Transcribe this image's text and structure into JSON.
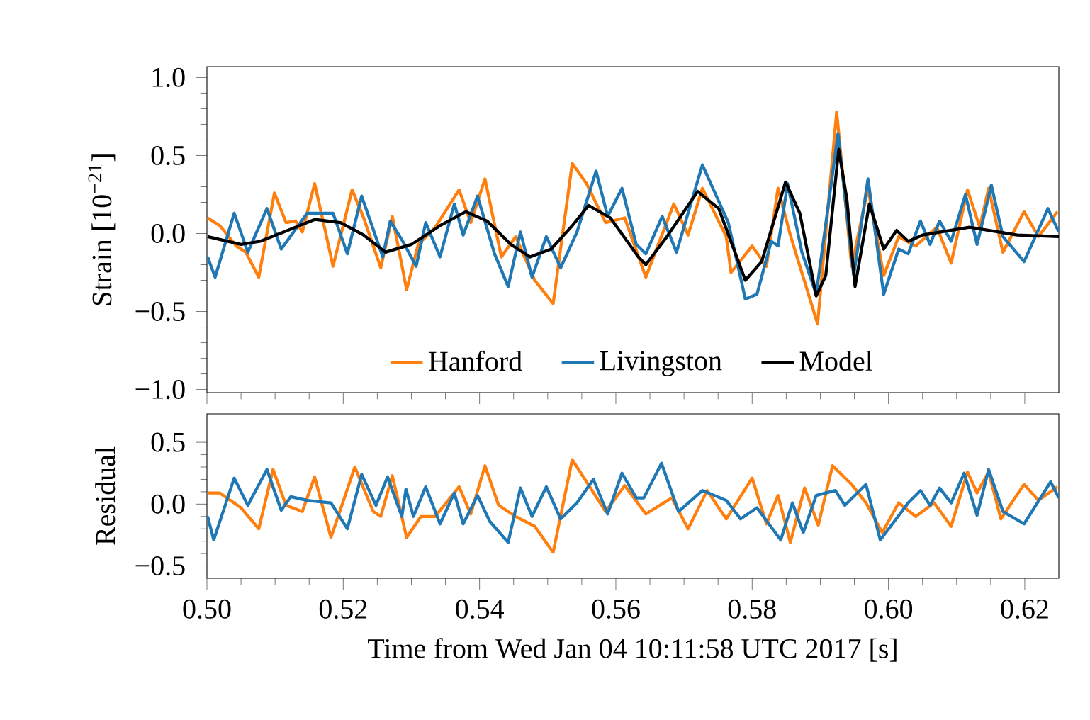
{
  "chart_data": [
    {
      "type": "line",
      "ylabel": "Strain [10$^{−21}$]",
      "xlim": [
        0.5,
        0.625
      ],
      "ylim": [
        -1.02,
        1.07
      ],
      "xticks": [
        {
          "value": 0.5,
          "label": null
        },
        {
          "value": 0.52,
          "label": null
        },
        {
          "value": 0.54,
          "label": null
        },
        {
          "value": 0.56,
          "label": null
        },
        {
          "value": 0.58,
          "label": null
        },
        {
          "value": 0.6,
          "label": null
        },
        {
          "value": 0.62,
          "label": null
        }
      ],
      "yticks": [
        {
          "value": -1.0,
          "label": "−1.0"
        },
        {
          "value": -0.5,
          "label": "−0.5"
        },
        {
          "value": 0.0,
          "label": "0.0"
        },
        {
          "value": 0.5,
          "label": "0.5"
        },
        {
          "value": 1.0,
          "label": "1.0"
        }
      ],
      "tick_labels": "y",
      "legend": "bottom",
      "series": [
        {
          "name": "Hanford",
          "color": "#ff7f0e",
          "x": [
            0.5001,
            0.5019,
            0.5043,
            0.5057,
            0.5076,
            0.5099,
            0.5116,
            0.513,
            0.514,
            0.5158,
            0.5175,
            0.5185,
            0.5213,
            0.523,
            0.5255,
            0.5272,
            0.5293,
            0.531,
            0.5335,
            0.537,
            0.5387,
            0.5408,
            0.5432,
            0.5453,
            0.5481,
            0.5508,
            0.5536,
            0.5557,
            0.5585,
            0.5613,
            0.5644,
            0.5685,
            0.5706,
            0.5727,
            0.5762,
            0.5769,
            0.58,
            0.5821,
            0.5838,
            0.5856,
            0.5896,
            0.5924,
            0.5946,
            0.597,
            0.5993,
            0.6015,
            0.604,
            0.6071,
            0.6092,
            0.6116,
            0.6134,
            0.6147,
            0.6168,
            0.6199,
            0.622,
            0.6248
          ],
          "values": [
            0.1,
            0.05,
            -0.08,
            -0.12,
            -0.28,
            0.26,
            0.07,
            0.08,
            0.01,
            0.32,
            -0.01,
            -0.21,
            0.28,
            0.1,
            -0.22,
            0.11,
            -0.36,
            -0.07,
            0.04,
            0.28,
            0.07,
            0.35,
            -0.15,
            -0.02,
            -0.3,
            -0.45,
            0.45,
            0.32,
            0.07,
            0.1,
            -0.28,
            0.19,
            -0.01,
            0.29,
            -0.02,
            -0.25,
            -0.08,
            -0.21,
            0.29,
            -0.01,
            -0.58,
            0.78,
            -0.21,
            0.29,
            -0.27,
            -0.02,
            -0.08,
            0.04,
            -0.19,
            0.28,
            0.04,
            0.29,
            -0.12,
            0.14,
            -0.02,
            0.14
          ]
        },
        {
          "name": "Livingston",
          "color": "#1f77b4",
          "x": [
            0.5001,
            0.5012,
            0.504,
            0.506,
            0.5088,
            0.5109,
            0.5147,
            0.5185,
            0.5206,
            0.5227,
            0.5258,
            0.5269,
            0.5286,
            0.5307,
            0.5321,
            0.5342,
            0.5363,
            0.5376,
            0.5397,
            0.5422,
            0.5442,
            0.546,
            0.5477,
            0.5498,
            0.5519,
            0.5543,
            0.5571,
            0.5588,
            0.5609,
            0.563,
            0.5644,
            0.5668,
            0.5689,
            0.5727,
            0.5765,
            0.579,
            0.5807,
            0.5828,
            0.5838,
            0.5852,
            0.5873,
            0.5894,
            0.5926,
            0.5949,
            0.597,
            0.5993,
            0.6015,
            0.6029,
            0.6047,
            0.6061,
            0.6075,
            0.6092,
            0.6113,
            0.613,
            0.6151,
            0.6168,
            0.6199,
            0.6234,
            0.625
          ],
          "values": [
            -0.15,
            -0.28,
            0.13,
            -0.12,
            0.16,
            -0.1,
            0.13,
            0.13,
            -0.13,
            0.24,
            -0.15,
            0.08,
            -0.04,
            -0.21,
            0.07,
            -0.15,
            0.19,
            -0.01,
            0.24,
            -0.13,
            -0.34,
            0.01,
            -0.28,
            -0.02,
            -0.22,
            0.01,
            0.4,
            0.11,
            0.29,
            -0.07,
            -0.13,
            0.11,
            -0.12,
            0.44,
            0.07,
            -0.42,
            -0.39,
            -0.05,
            -0.08,
            0.32,
            -0.12,
            -0.39,
            0.64,
            -0.27,
            0.35,
            -0.39,
            -0.1,
            -0.13,
            0.08,
            -0.07,
            0.08,
            -0.05,
            0.25,
            -0.07,
            0.31,
            -0.02,
            -0.18,
            0.16,
            0.01
          ]
        },
        {
          "name": "Model",
          "color": "#000000",
          "x": [
            0.5001,
            0.505,
            0.5078,
            0.5113,
            0.5158,
            0.5196,
            0.523,
            0.5262,
            0.53,
            0.5342,
            0.538,
            0.5411,
            0.5446,
            0.5474,
            0.5505,
            0.5536,
            0.556,
            0.5592,
            0.5633,
            0.5644,
            0.5675,
            0.572,
            0.5751,
            0.579,
            0.5814,
            0.5849,
            0.587,
            0.5894,
            0.5908,
            0.5927,
            0.5939,
            0.5951,
            0.5972,
            0.5993,
            0.6012,
            0.6029,
            0.605,
            0.6119,
            0.6189,
            0.625
          ],
          "values": [
            -0.02,
            -0.07,
            -0.05,
            0.01,
            0.09,
            0.07,
            -0.01,
            -0.12,
            -0.07,
            0.05,
            0.14,
            0.08,
            -0.07,
            -0.15,
            -0.1,
            0.05,
            0.18,
            0.1,
            -0.15,
            -0.2,
            -0.02,
            0.27,
            0.16,
            -0.3,
            -0.18,
            0.33,
            0.13,
            -0.4,
            -0.27,
            0.54,
            0.22,
            -0.34,
            0.19,
            -0.1,
            0.02,
            -0.05,
            -0.01,
            0.04,
            -0.01,
            -0.02
          ]
        }
      ]
    },
    {
      "type": "line",
      "xlabel": "Time from Wed Jan 04 10:11:58 UTC 2017 [s]",
      "ylabel": "Residual",
      "xlim": [
        0.5,
        0.625
      ],
      "ylim": [
        -0.6,
        0.73
      ],
      "xticks": [
        {
          "value": 0.5,
          "label": "0.50"
        },
        {
          "value": 0.52,
          "label": "0.52"
        },
        {
          "value": 0.54,
          "label": "0.54"
        },
        {
          "value": 0.56,
          "label": "0.56"
        },
        {
          "value": 0.58,
          "label": "0.58"
        },
        {
          "value": 0.6,
          "label": "0.60"
        },
        {
          "value": 0.62,
          "label": "0.62"
        }
      ],
      "yticks": [
        {
          "value": -0.5,
          "label": "−0.5"
        },
        {
          "value": 0.0,
          "label": "0.0"
        },
        {
          "value": 0.5,
          "label": "0.5"
        }
      ],
      "series": [
        {
          "color": "#ff7f0e",
          "x": [
            0.5001,
            0.5019,
            0.505,
            0.5076,
            0.5097,
            0.5116,
            0.514,
            0.5158,
            0.5182,
            0.5217,
            0.5244,
            0.5255,
            0.5272,
            0.5293,
            0.5314,
            0.5335,
            0.537,
            0.5387,
            0.5408,
            0.5428,
            0.5453,
            0.5481,
            0.5508,
            0.5536,
            0.5557,
            0.5585,
            0.5613,
            0.5644,
            0.5682,
            0.5706,
            0.5734,
            0.5762,
            0.58,
            0.5821,
            0.5838,
            0.5856,
            0.5877,
            0.5897,
            0.5918,
            0.5946,
            0.5967,
            0.5991,
            0.6015,
            0.604,
            0.6067,
            0.6092,
            0.6116,
            0.613,
            0.6147,
            0.6165,
            0.6199,
            0.622,
            0.6248
          ],
          "values": [
            0.09,
            0.09,
            -0.03,
            -0.2,
            0.28,
            -0.01,
            -0.06,
            0.22,
            -0.27,
            0.3,
            -0.06,
            -0.1,
            0.23,
            -0.27,
            -0.1,
            -0.1,
            0.14,
            -0.08,
            0.31,
            -0.01,
            -0.1,
            -0.18,
            -0.39,
            0.36,
            0.18,
            -0.06,
            0.15,
            -0.08,
            0.05,
            -0.2,
            0.11,
            -0.12,
            0.21,
            -0.16,
            0.07,
            -0.31,
            0.13,
            -0.17,
            0.31,
            0.16,
            0.01,
            -0.23,
            0.01,
            -0.1,
            0.01,
            -0.18,
            0.26,
            0.09,
            0.26,
            -0.12,
            0.16,
            0.03,
            0.14
          ]
        },
        {
          "color": "#1f77b4",
          "x": [
            0.5001,
            0.501,
            0.504,
            0.506,
            0.5088,
            0.5109,
            0.5123,
            0.5147,
            0.5182,
            0.5206,
            0.5227,
            0.5248,
            0.5265,
            0.5286,
            0.5292,
            0.5303,
            0.5321,
            0.5342,
            0.5363,
            0.5376,
            0.5397,
            0.5415,
            0.5442,
            0.546,
            0.5477,
            0.5498,
            0.5519,
            0.5543,
            0.5567,
            0.5588,
            0.5609,
            0.563,
            0.5641,
            0.5667,
            0.5692,
            0.5727,
            0.5762,
            0.5783,
            0.5807,
            0.5842,
            0.5859,
            0.5875,
            0.5894,
            0.5922,
            0.5936,
            0.5967,
            0.5988,
            0.6029,
            0.6047,
            0.6061,
            0.6075,
            0.6092,
            0.6111,
            0.613,
            0.6147,
            0.6168,
            0.6199,
            0.6238,
            0.625
          ],
          "values": [
            -0.1,
            -0.29,
            0.21,
            -0.01,
            0.28,
            -0.05,
            0.06,
            0.03,
            0.01,
            -0.2,
            0.24,
            -0.01,
            0.22,
            -0.1,
            0.12,
            -0.1,
            0.14,
            -0.16,
            0.09,
            -0.16,
            0.07,
            -0.14,
            -0.31,
            0.13,
            -0.1,
            0.14,
            -0.12,
            0.01,
            0.2,
            -0.08,
            0.25,
            0.05,
            0.05,
            0.33,
            -0.06,
            0.11,
            0.03,
            -0.12,
            -0.03,
            -0.29,
            0.01,
            -0.23,
            0.07,
            0.11,
            -0.01,
            0.16,
            -0.29,
            0.01,
            0.11,
            -0.01,
            0.13,
            0.01,
            0.25,
            -0.09,
            0.28,
            -0.06,
            -0.16,
            0.18,
            0.05
          ]
        }
      ]
    }
  ]
}
